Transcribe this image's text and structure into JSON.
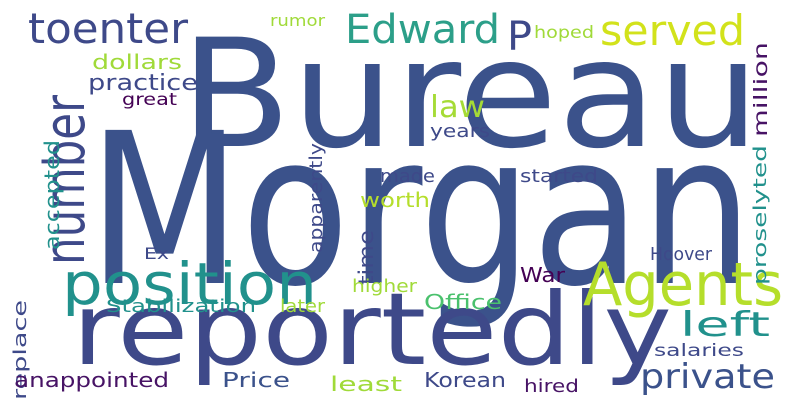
{
  "words": [
    {
      "text": "Morgan",
      "color": "#3b528b"
    },
    {
      "text": "Bureau",
      "color": "#3b528b"
    },
    {
      "text": "reportedly",
      "color": "#3e4989"
    },
    {
      "text": "position",
      "color": "#21918c"
    },
    {
      "text": "Agents",
      "color": "#b5de2b"
    },
    {
      "text": "number",
      "color": "#3e4989"
    },
    {
      "text": "toenter",
      "color": "#3e4989"
    },
    {
      "text": "Edward",
      "color": "#2c9f89"
    },
    {
      "text": "served",
      "color": "#d2e21b"
    },
    {
      "text": "P",
      "color": "#3e4989"
    },
    {
      "text": "private",
      "color": "#3b528b"
    },
    {
      "text": "left",
      "color": "#21918c"
    },
    {
      "text": "law",
      "color": "#a5db36"
    },
    {
      "text": "practice",
      "color": "#3e4989"
    },
    {
      "text": "dollars",
      "color": "#a0da39"
    },
    {
      "text": "great",
      "color": "#440154"
    },
    {
      "text": "rumor",
      "color": "#a0da39"
    },
    {
      "text": "hoped",
      "color": "#a0da39"
    },
    {
      "text": "million",
      "color": "#471365"
    },
    {
      "text": "years",
      "color": "#3e4989"
    },
    {
      "text": "apparently",
      "color": "#3e4989"
    },
    {
      "text": "made",
      "color": "#3e4989"
    },
    {
      "text": "started",
      "color": "#3e4989"
    },
    {
      "text": "worth",
      "color": "#b5de2b"
    },
    {
      "text": "accepted",
      "color": "#21918c"
    },
    {
      "text": "time",
      "color": "#3e4989"
    },
    {
      "text": "proselyted",
      "color": "#21918c"
    },
    {
      "text": "Ex",
      "color": "#3e4989"
    },
    {
      "text": "Hoover",
      "color": "#3e4989"
    },
    {
      "text": "War",
      "color": "#440154"
    },
    {
      "text": "higher",
      "color": "#a0da39"
    },
    {
      "text": "Office",
      "color": "#4ac16d"
    },
    {
      "text": "replace",
      "color": "#3e4989"
    },
    {
      "text": "Stabilization",
      "color": "#21918c"
    },
    {
      "text": "later",
      "color": "#a0da39"
    },
    {
      "text": "salaries",
      "color": "#3e4989"
    },
    {
      "text": "anappointed",
      "color": "#471365"
    },
    {
      "text": "Price",
      "color": "#3b528b"
    },
    {
      "text": "least",
      "color": "#a0da39"
    },
    {
      "text": "Korean",
      "color": "#3e4989"
    },
    {
      "text": "hired",
      "color": "#471365"
    }
  ]
}
